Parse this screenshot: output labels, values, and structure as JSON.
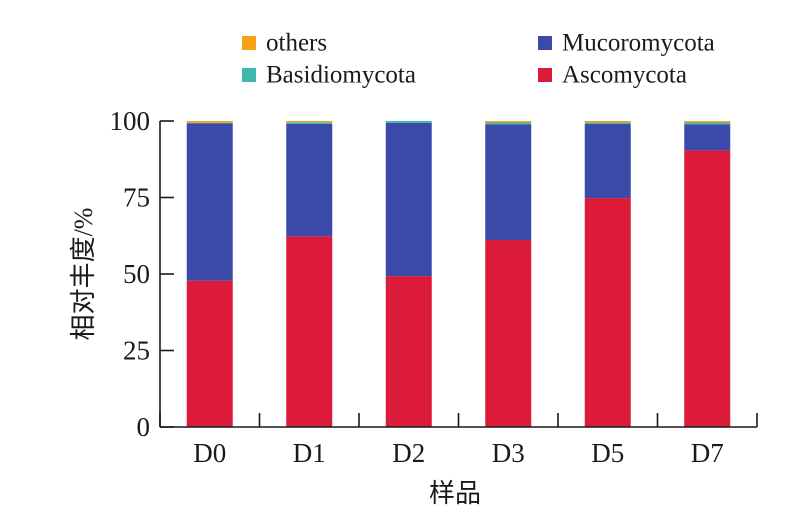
{
  "chart_data": {
    "type": "bar",
    "stacked": true,
    "title": "",
    "xlabel": "样品",
    "ylabel": "相对丰度/%",
    "ylim": [
      0,
      100
    ],
    "yticks": [
      0,
      25,
      50,
      75,
      100
    ],
    "ytick_labels": [
      "0",
      "25",
      "50",
      "75",
      "100"
    ],
    "categories": [
      "D0",
      "D1",
      "D2",
      "D3",
      "D5",
      "D7"
    ],
    "grid": false,
    "legend_position": "top",
    "series": [
      {
        "name": "Ascomycota",
        "color": "#dc1a3a",
        "values": [
          47.8,
          62.3,
          49.3,
          61.1,
          74.8,
          90.4
        ]
      },
      {
        "name": "Mucoromycota",
        "color": "#3b4aa8",
        "values": [
          51.5,
          36.8,
          50.1,
          37.8,
          24.3,
          8.5
        ]
      },
      {
        "name": "Basidiomycota",
        "color": "#3fb8ac",
        "values": [
          0.1,
          0.5,
          0.6,
          0.6,
          0.4,
          0.6
        ]
      },
      {
        "name": "others",
        "color": "#f3a21a",
        "values": [
          0.6,
          0.4,
          0.0,
          0.5,
          0.5,
          0.5
        ]
      }
    ],
    "legend": [
      {
        "name": "others",
        "color": "#f3a21a"
      },
      {
        "name": "Mucoromycota",
        "color": "#3b4aa8"
      },
      {
        "name": "Basidiomycota",
        "color": "#3fb8ac"
      },
      {
        "name": "Ascomycota",
        "color": "#dc1a3a"
      }
    ]
  }
}
